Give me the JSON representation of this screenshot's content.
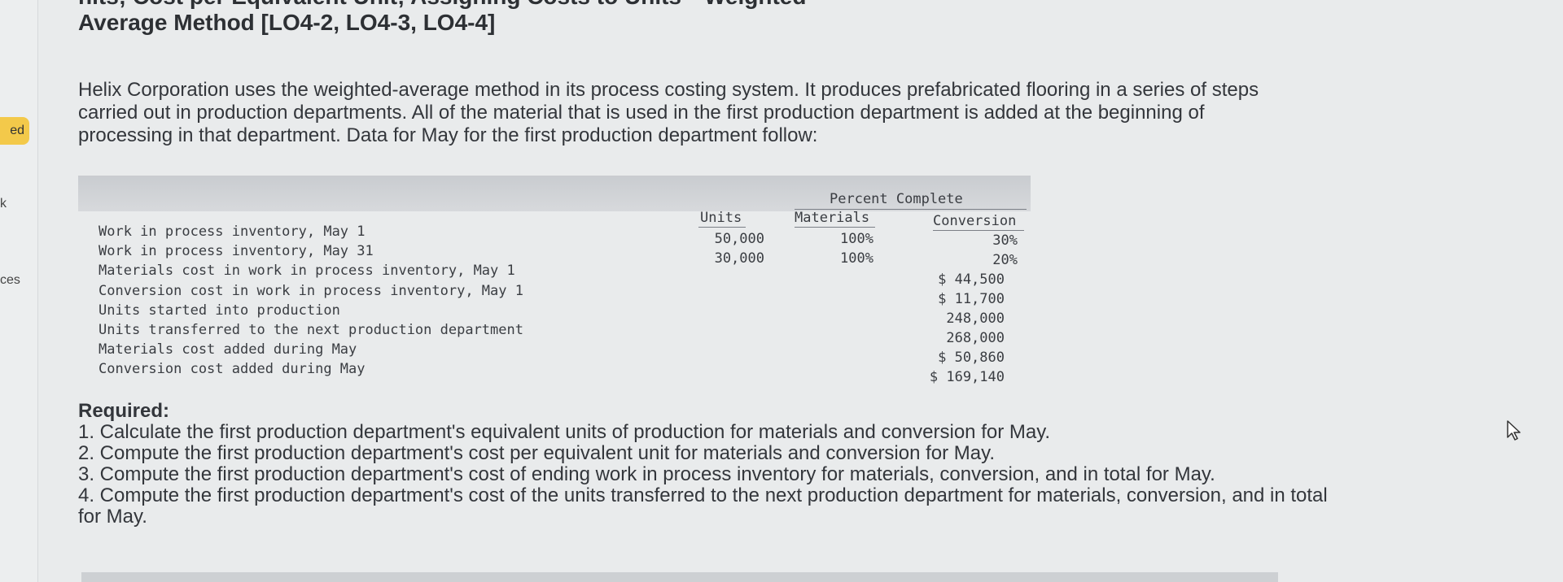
{
  "sidebar": {
    "badge": "ed",
    "label_k": "k",
    "label_ces": "ces"
  },
  "header": {
    "title_line1": "nits; Cost per Equivalent Unit; Assigning Costs to Units—Weighted-",
    "title_line2": "Average Method [LO4-2, LO4-3, LO4-4]"
  },
  "intro": "Helix Corporation uses the weighted-average method in its process costing system. It produces prefabricated flooring in a series of steps carried out in production departments. All of the material that is used in the first production department is added at the beginning of processing in that department. Data for May for the first production department follow:",
  "table": {
    "group_header": "Percent Complete",
    "col_units": "Units",
    "col_materials": "Materials",
    "col_conversion": "Conversion",
    "rows": [
      "Work in process inventory, May 1",
      "Work in process inventory, May 31",
      "Materials cost in work in process inventory, May 1",
      "Conversion cost in work in process inventory, May 1",
      "Units started into production",
      "Units transferred to the next production department",
      "Materials cost added during May",
      "Conversion cost added during May"
    ],
    "units_values": [
      "50,000",
      "30,000"
    ],
    "materials_values": [
      "100%",
      "100%"
    ],
    "conversion_values": [
      "30%",
      "20%",
      "$ 44,500",
      "$ 11,700",
      "248,000",
      "268,000",
      "$ 50,860",
      "$ 169,140"
    ]
  },
  "required": {
    "heading": "Required:",
    "items": [
      "1. Calculate the first production department's equivalent units of production for materials and conversion for May.",
      "2. Compute the first production department's cost per equivalent unit for materials and conversion for May.",
      "3. Compute the first production department's cost of ending work in process inventory for materials, conversion, and in total for May.",
      "4. Compute the first production department's cost of the units transferred to the next production department for materials, conversion, and in total for May."
    ]
  },
  "icons": {
    "cursor": "mouse-pointer-icon"
  }
}
